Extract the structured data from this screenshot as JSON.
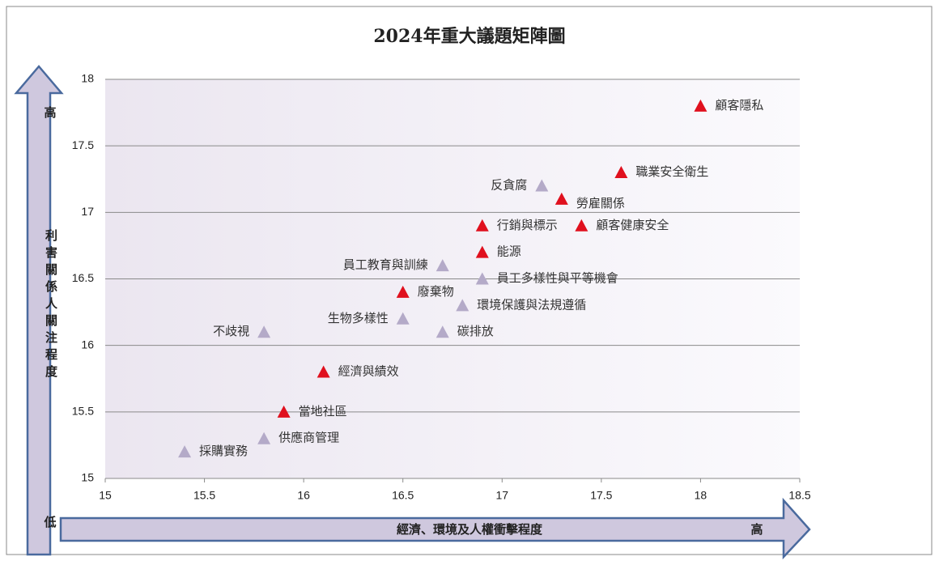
{
  "chart_data": {
    "type": "scatter",
    "title": "2024年重大議題矩陣圖",
    "y_axis_label": "利害關係人關注程度",
    "x_axis_label": "經濟、環境及人權衝擊程度",
    "y_high_label": "高",
    "low_label": "低",
    "x_high_label": "高",
    "xlim": [
      15,
      18.5
    ],
    "xticks": [
      15,
      15.5,
      16,
      16.5,
      17,
      17.5,
      18,
      18.5
    ],
    "ylim": [
      15,
      18
    ],
    "yticks": [
      15,
      15.5,
      16,
      16.5,
      17,
      17.5,
      18
    ],
    "grid": true,
    "points": [
      {
        "label": "顧客隱私",
        "x": 18,
        "y": 17.8,
        "color": "#e0101e"
      },
      {
        "label": "職業安全衛生",
        "x": 17.6,
        "y": 17.3,
        "color": "#e0101e"
      },
      {
        "label": "反貪腐",
        "x": 17.2,
        "y": 17.2,
        "color": "#b4aac8"
      },
      {
        "label": "勞雇關係",
        "x": 17.3,
        "y": 17.1,
        "color": "#e0101e"
      },
      {
        "label": "行銷與標示",
        "x": 16.9,
        "y": 16.9,
        "color": "#e0101e"
      },
      {
        "label": "顧客健康安全",
        "x": 17.4,
        "y": 16.9,
        "color": "#e0101e"
      },
      {
        "label": "能源",
        "x": 16.9,
        "y": 16.7,
        "color": "#e0101e"
      },
      {
        "label": "員工教育與訓練",
        "x": 16.7,
        "y": 16.6,
        "color": "#b4aac8"
      },
      {
        "label": "員工多樣性與平等機會",
        "x": 16.9,
        "y": 16.5,
        "color": "#b4aac8"
      },
      {
        "label": "廢棄物",
        "x": 16.5,
        "y": 16.4,
        "color": "#e0101e"
      },
      {
        "label": "環境保護與法規遵循",
        "x": 16.8,
        "y": 16.3,
        "color": "#b4aac8"
      },
      {
        "label": "生物多樣性",
        "x": 16.5,
        "y": 16.2,
        "color": "#b4aac8"
      },
      {
        "label": "碳排放",
        "x": 16.7,
        "y": 16.1,
        "color": "#b4aac8"
      },
      {
        "label": "不歧視",
        "x": 15.8,
        "y": 16.1,
        "color": "#b4aac8"
      },
      {
        "label": "經濟與績效",
        "x": 16.1,
        "y": 15.8,
        "color": "#e0101e"
      },
      {
        "label": "當地社區",
        "x": 15.9,
        "y": 15.5,
        "color": "#e0101e"
      },
      {
        "label": "供應商管理",
        "x": 15.8,
        "y": 15.3,
        "color": "#b4aac8"
      },
      {
        "label": "採購實務",
        "x": 15.4,
        "y": 15.2,
        "color": "#b4aac8"
      }
    ]
  }
}
